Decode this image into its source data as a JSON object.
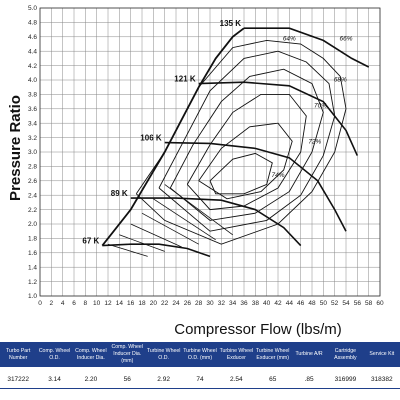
{
  "chart_data": {
    "type": "line",
    "title": "",
    "xlabel": "Compressor Flow (lbs/m)",
    "ylabel": "Pressure Ratio",
    "xlim": [
      0,
      60
    ],
    "ylim": [
      1.0,
      5.0
    ],
    "x_ticks": [
      "0",
      "2",
      "4",
      "6",
      "8",
      "10",
      "12",
      "14",
      "16",
      "18",
      "20",
      "22",
      "24",
      "26",
      "28",
      "30",
      "32",
      "34",
      "36",
      "38",
      "40",
      "42",
      "44",
      "46",
      "48",
      "50",
      "52",
      "54",
      "56",
      "58",
      "60"
    ],
    "y_ticks": [
      "1.0",
      "1.2",
      "1.4",
      "1.6",
      "1.8",
      "2.0",
      "2.2",
      "2.4",
      "2.6",
      "2.8",
      "3.0",
      "3.2",
      "3.4",
      "3.6",
      "3.8",
      "4.0",
      "4.2",
      "4.4",
      "4.6",
      "4.8",
      "5.0"
    ],
    "grid": true,
    "surge_line": [
      [
        11,
        1.7
      ],
      [
        13,
        1.9
      ],
      [
        16,
        2.2
      ],
      [
        19,
        2.6
      ],
      [
        22,
        3.0
      ],
      [
        25,
        3.45
      ],
      [
        28,
        3.9
      ],
      [
        31,
        4.3
      ],
      [
        34,
        4.6
      ],
      [
        36,
        4.72
      ]
    ],
    "speed_lines": [
      {
        "label": "67 K",
        "points": [
          [
            11,
            1.7
          ],
          [
            16,
            1.72
          ],
          [
            21,
            1.72
          ],
          [
            26,
            1.66
          ],
          [
            30,
            1.55
          ]
        ]
      },
      {
        "label": "89 K",
        "points": [
          [
            16,
            2.36
          ],
          [
            24,
            2.36
          ],
          [
            32,
            2.33
          ],
          [
            38,
            2.2
          ],
          [
            43,
            1.95
          ],
          [
            46,
            1.7
          ]
        ]
      },
      {
        "label": "106 K",
        "points": [
          [
            22,
            3.13
          ],
          [
            30,
            3.12
          ],
          [
            38,
            3.05
          ],
          [
            44,
            2.92
          ],
          [
            49,
            2.6
          ],
          [
            52,
            2.2
          ],
          [
            54,
            1.9
          ]
        ]
      },
      {
        "label": "121 K",
        "points": [
          [
            28,
            3.95
          ],
          [
            36,
            3.97
          ],
          [
            44,
            3.92
          ],
          [
            50,
            3.7
          ],
          [
            54,
            3.3
          ],
          [
            56,
            2.95
          ]
        ]
      },
      {
        "label": "135 K",
        "points": [
          [
            36,
            4.72
          ],
          [
            44,
            4.72
          ],
          [
            50,
            4.55
          ],
          [
            55,
            4.3
          ],
          [
            58,
            4.18
          ]
        ]
      }
    ],
    "efficiency_islands": [
      {
        "label": "64%",
        "points": [
          [
            17,
            2.42
          ],
          [
            22,
            3.0
          ],
          [
            28,
            3.9
          ],
          [
            34,
            4.45
          ],
          [
            40,
            4.55
          ],
          [
            46,
            4.5
          ],
          [
            50,
            4.3
          ],
          [
            53,
            4.05
          ],
          [
            54,
            3.6
          ],
          [
            52,
            3.0
          ],
          [
            48,
            2.45
          ],
          [
            42,
            2.0
          ],
          [
            32,
            1.72
          ],
          [
            22,
            2.05
          ],
          [
            17,
            2.42
          ]
        ]
      },
      {
        "label": "66%",
        "points": [
          [
            21,
            2.5
          ],
          [
            25,
            3.1
          ],
          [
            30,
            3.85
          ],
          [
            36,
            4.3
          ],
          [
            42,
            4.4
          ],
          [
            47,
            4.25
          ],
          [
            51,
            3.95
          ],
          [
            52,
            3.5
          ],
          [
            50,
            2.95
          ],
          [
            46,
            2.4
          ],
          [
            40,
            2.05
          ],
          [
            30,
            1.9
          ],
          [
            21,
            2.5
          ]
        ]
      },
      {
        "label": "68%",
        "points": [
          [
            23,
            2.5
          ],
          [
            27,
            3.1
          ],
          [
            32,
            3.7
          ],
          [
            37,
            4.05
          ],
          [
            43,
            4.15
          ],
          [
            48,
            3.95
          ],
          [
            50,
            3.55
          ],
          [
            48,
            3.0
          ],
          [
            44,
            2.45
          ],
          [
            38,
            2.15
          ],
          [
            30,
            2.05
          ],
          [
            23,
            2.5
          ]
        ]
      },
      {
        "label": "70%",
        "points": [
          [
            26,
            2.55
          ],
          [
            30,
            3.1
          ],
          [
            34,
            3.55
          ],
          [
            39,
            3.8
          ],
          [
            44,
            3.8
          ],
          [
            47,
            3.5
          ],
          [
            46,
            3.0
          ],
          [
            42,
            2.5
          ],
          [
            36,
            2.25
          ],
          [
            30,
            2.2
          ],
          [
            26,
            2.55
          ]
        ]
      },
      {
        "label": "72%",
        "points": [
          [
            28,
            2.6
          ],
          [
            32,
            3.05
          ],
          [
            37,
            3.35
          ],
          [
            42,
            3.4
          ],
          [
            44.5,
            3.15
          ],
          [
            43,
            2.75
          ],
          [
            39,
            2.45
          ],
          [
            33,
            2.35
          ],
          [
            28,
            2.6
          ]
        ]
      },
      {
        "label": "74%",
        "points": [
          [
            30,
            2.6
          ],
          [
            34,
            2.9
          ],
          [
            38,
            2.98
          ],
          [
            41,
            2.85
          ],
          [
            40,
            2.55
          ],
          [
            36,
            2.42
          ],
          [
            31,
            2.42
          ],
          [
            30,
            2.6
          ]
        ]
      }
    ],
    "efficiency_label_positions": [
      [
        44,
        4.55
      ],
      [
        54,
        4.55
      ],
      [
        53,
        3.98
      ],
      [
        49.5,
        3.62
      ],
      [
        48.5,
        3.12
      ],
      [
        42,
        2.65
      ]
    ],
    "choke_lines": [
      [
        [
          12,
          1.72
        ],
        [
          19,
          1.55
        ]
      ],
      [
        [
          14,
          1.85
        ],
        [
          22,
          1.62
        ]
      ],
      [
        [
          16,
          2.0
        ],
        [
          25,
          1.68
        ]
      ],
      [
        [
          18,
          2.15
        ],
        [
          28,
          1.72
        ]
      ],
      [
        [
          20,
          2.35
        ],
        [
          31,
          1.78
        ]
      ],
      [
        [
          22,
          2.55
        ],
        [
          34,
          1.85
        ]
      ]
    ]
  },
  "spec_table": {
    "headers": [
      "Turbo Part Number",
      "Comp. Wheel O.D.",
      "Comp. Wheel Inducer Dia.",
      "Comp. Wheel Inducer Dia. (mm)",
      "Turbine Wheel O.D.",
      "Turbine Wheel O.D. (mm)",
      "Turbine Wheel Exducer",
      "Turbine Wheel Exducer (mm)",
      "Turbine A/R",
      "Cartridge Assembly",
      "Service Kit"
    ],
    "values": [
      "317222",
      "3.14",
      "2.20",
      "56",
      "2.92",
      "74",
      "2.54",
      "65",
      ".85",
      "316999",
      "318382"
    ]
  },
  "colors": {
    "header_bg": "#1f3f8a",
    "line": "#111111",
    "grid": "#888888"
  }
}
